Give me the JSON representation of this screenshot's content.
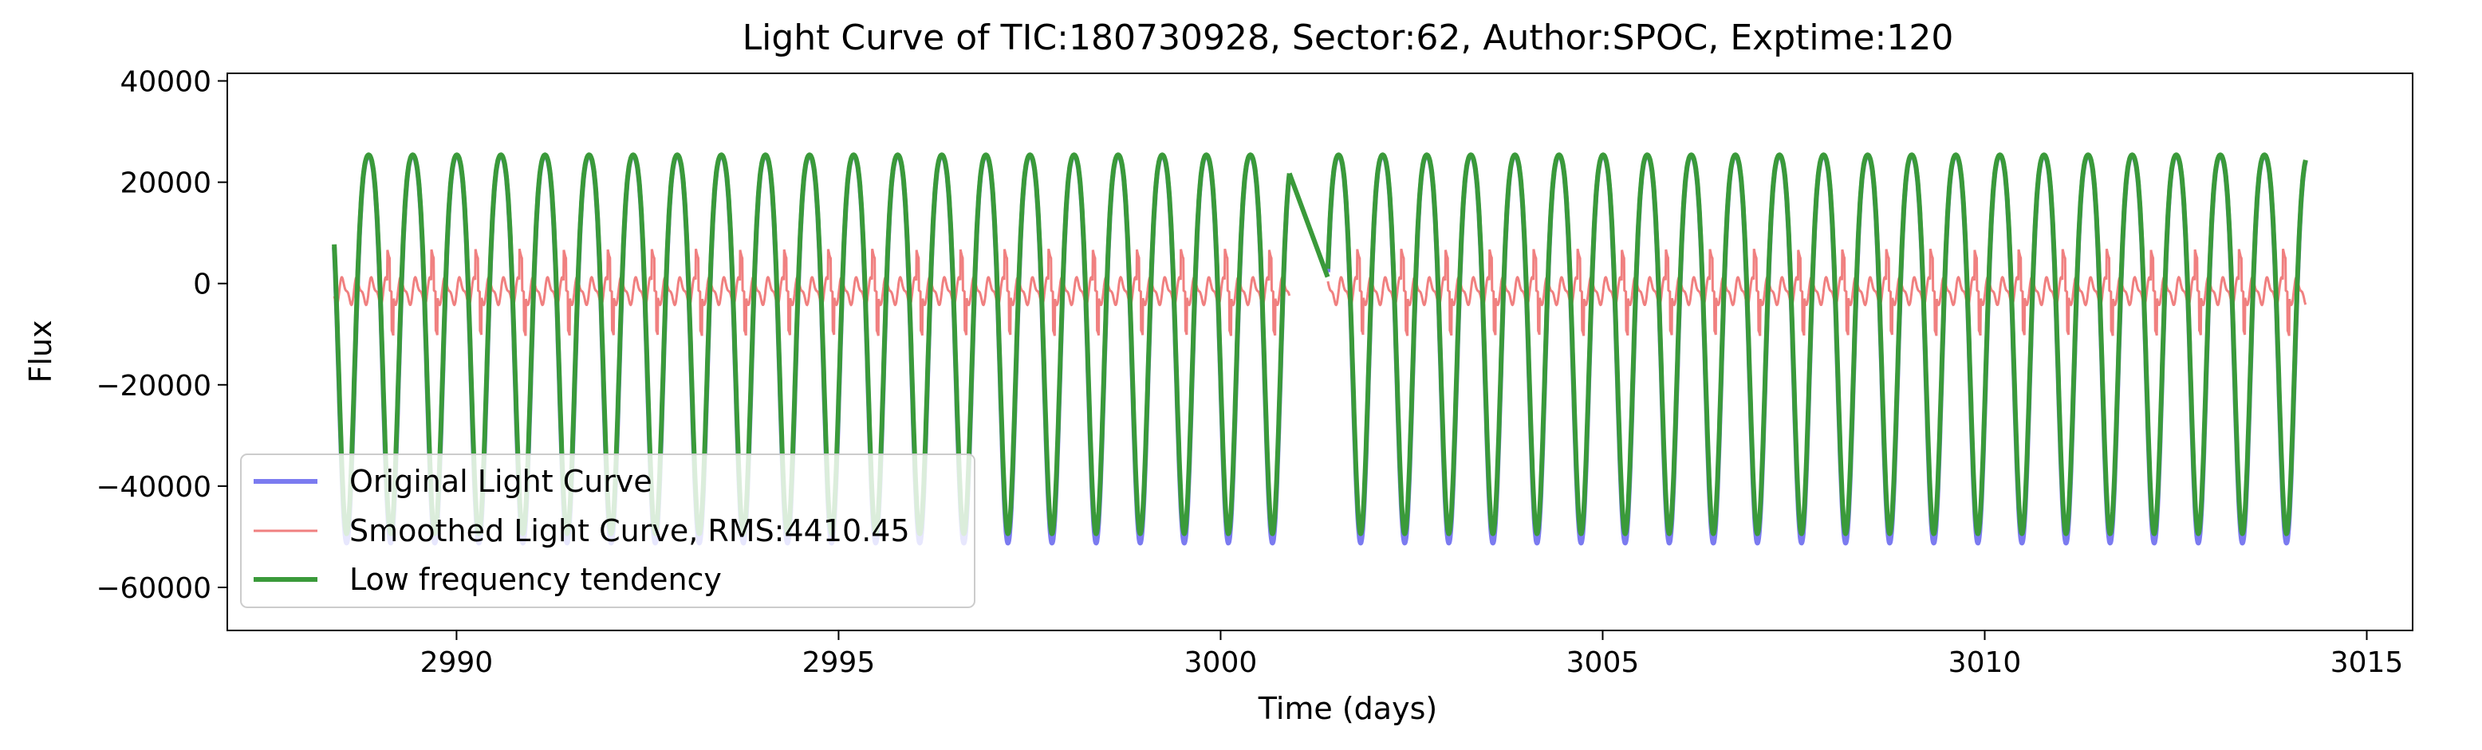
{
  "chart_data": {
    "type": "line",
    "title": "Light Curve of TIC:180730928, Sector:62, Author:SPOC, Exptime:120",
    "xlabel": "Time (days)",
    "ylabel": "Flux",
    "xlim": [
      2987.0,
      3015.6
    ],
    "ylim": [
      -68500,
      41500
    ],
    "xticks": [
      2990,
      2995,
      3000,
      3005,
      3010,
      3015
    ],
    "xtick_labels": [
      "2990",
      "2995",
      "3000",
      "3005",
      "3010",
      "3015"
    ],
    "yticks": [
      40000,
      20000,
      0,
      -20000,
      -40000,
      -60000
    ],
    "ytick_labels": [
      "40000",
      "20000",
      "0",
      "−20000",
      "−40000",
      "−60000"
    ],
    "grid": false,
    "legend_position": "lower left",
    "series": [
      {
        "name": "Original Light Curve",
        "color": "#7b7bf0",
        "x_range": [
          2988.4,
          3014.2
        ],
        "gaps": [
          [
            3000.9,
            3001.4
          ]
        ],
        "period_days": 0.577,
        "maximum": 32000,
        "minimum": -58000
      },
      {
        "name": "Smoothed Light Curve, RMS:4410.45",
        "color": "#f08080",
        "x_range": [
          2988.4,
          3014.2
        ],
        "maximum": 9000,
        "minimum": -12000
      },
      {
        "name": "Low frequency tendency",
        "color": "#3a9a3a",
        "x_range": [
          2988.4,
          3014.2
        ],
        "maximum": 32000,
        "minimum": -56000
      }
    ]
  }
}
